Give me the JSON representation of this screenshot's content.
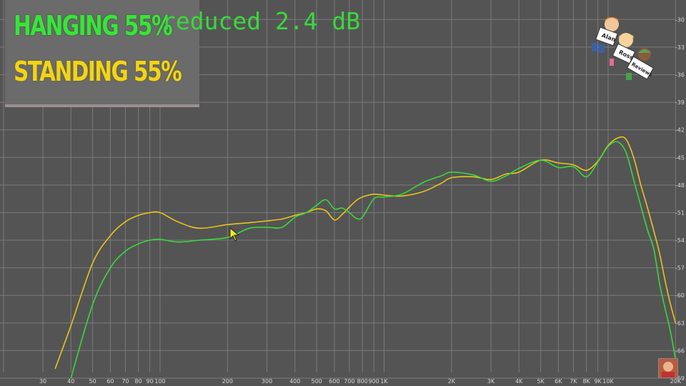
{
  "legend": {
    "hanging": "HANGING 55%",
    "standing": "STANDING 55%"
  },
  "annotation": "reduced 2.4 dB",
  "logo": {
    "signs": [
      "Alan",
      "Ross",
      "Reviews"
    ]
  },
  "colors": {
    "background": "#545454",
    "grid": "#7a7a7a",
    "hanging": "#39d93b",
    "standing": "#e9c31c"
  },
  "chart_data": {
    "type": "line",
    "x_scale": "log",
    "xlim": [
      20,
      20000
    ],
    "ylim": [
      -69,
      -28.5
    ],
    "x_ticks": [
      {
        "v": 30,
        "label": "30"
      },
      {
        "v": 40,
        "label": "40"
      },
      {
        "v": 50,
        "label": "50"
      },
      {
        "v": 60,
        "label": "60"
      },
      {
        "v": 70,
        "label": "70"
      },
      {
        "v": 80,
        "label": "80"
      },
      {
        "v": 90,
        "label": "90"
      },
      {
        "v": 100,
        "label": "100"
      },
      {
        "v": 200,
        "label": "200"
      },
      {
        "v": 300,
        "label": "300"
      },
      {
        "v": 400,
        "label": "400"
      },
      {
        "v": 500,
        "label": "500"
      },
      {
        "v": 600,
        "label": "600"
      },
      {
        "v": 700,
        "label": "700"
      },
      {
        "v": 800,
        "label": "800"
      },
      {
        "v": 900,
        "label": "900"
      },
      {
        "v": 1000,
        "label": "1K"
      },
      {
        "v": 2000,
        "label": "2K"
      },
      {
        "v": 3000,
        "label": "3K"
      },
      {
        "v": 4000,
        "label": "4K"
      },
      {
        "v": 5000,
        "label": "5K"
      },
      {
        "v": 6000,
        "label": "6K"
      },
      {
        "v": 7000,
        "label": "7K"
      },
      {
        "v": 8000,
        "label": "8K"
      },
      {
        "v": 9000,
        "label": "9K"
      },
      {
        "v": 10000,
        "label": "10K"
      },
      {
        "v": 20000,
        "label": "20K"
      }
    ],
    "y_ticks": [
      -30,
      -33,
      -36,
      -39,
      -42,
      -45,
      -48,
      -51,
      -54,
      -57,
      -60,
      -63,
      -66,
      -69
    ],
    "grid": true,
    "series": [
      {
        "name": "HANGING 55%",
        "color": "#39d93b",
        "x": [
          40,
          50,
          60,
          70,
          80,
          90,
          100,
          120,
          150,
          200,
          250,
          300,
          350,
          400,
          450,
          500,
          550,
          600,
          650,
          700,
          750,
          800,
          900,
          1000,
          1200,
          1500,
          1800,
          2000,
          2500,
          3000,
          3500,
          4000,
          5000,
          6000,
          7000,
          8000,
          9000,
          10000,
          11000,
          12000,
          13000,
          14000,
          15000,
          16000,
          17000,
          18000,
          19000,
          20000
        ],
        "y": [
          -69.0,
          -61.0,
          -57.0,
          -55.2,
          -54.4,
          -54.0,
          -53.9,
          -54.2,
          -54.0,
          -53.7,
          -52.7,
          -52.6,
          -52.6,
          -51.5,
          -51.0,
          -50.2,
          -49.6,
          -50.6,
          -50.5,
          -51.0,
          -51.6,
          -51.5,
          -49.5,
          -49.3,
          -49.0,
          -47.7,
          -47.0,
          -46.6,
          -46.9,
          -47.6,
          -47.0,
          -46.2,
          -45.3,
          -46.1,
          -46.0,
          -47.1,
          -45.5,
          -43.8,
          -43.3,
          -44.4,
          -47.4,
          -50.3,
          -52.9,
          -55.0,
          -58.8,
          -61.5,
          -64.0,
          -67.0
        ]
      },
      {
        "name": "STANDING 55%",
        "color": "#e9c31c",
        "x": [
          34,
          40,
          50,
          60,
          70,
          80,
          90,
          100,
          120,
          150,
          200,
          250,
          300,
          350,
          400,
          450,
          500,
          550,
          600,
          650,
          700,
          750,
          800,
          900,
          1000,
          1200,
          1500,
          1800,
          2000,
          2500,
          3000,
          3500,
          4000,
          5000,
          6000,
          7000,
          8000,
          9000,
          10000,
          11000,
          12000,
          13000,
          14000,
          15000,
          16000,
          17000,
          18000,
          19000,
          20000
        ],
        "y": [
          -68.0,
          -63.3,
          -56.5,
          -53.5,
          -52.0,
          -51.3,
          -51.0,
          -51.0,
          -52.0,
          -52.7,
          -52.3,
          -52.1,
          -51.9,
          -51.7,
          -51.3,
          -51.0,
          -50.6,
          -50.8,
          -51.8,
          -51.2,
          -50.4,
          -49.7,
          -49.3,
          -49.0,
          -49.1,
          -49.2,
          -48.7,
          -47.8,
          -47.2,
          -47.1,
          -47.4,
          -46.8,
          -46.6,
          -45.3,
          -45.6,
          -45.8,
          -46.4,
          -45.4,
          -43.7,
          -42.9,
          -43.0,
          -45.0,
          -48.0,
          -50.5,
          -53.0,
          -55.5,
          -58.5,
          -61.0,
          -63.0
        ]
      }
    ]
  }
}
